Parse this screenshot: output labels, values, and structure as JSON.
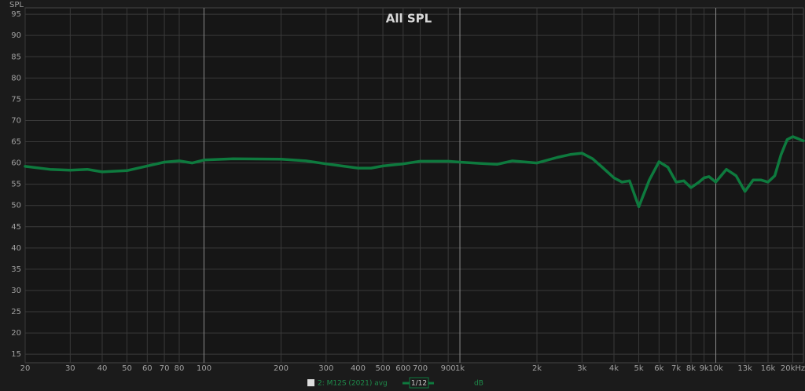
{
  "chart_data": {
    "type": "line",
    "title": "All SPL",
    "y_label": "SPL",
    "xscale": "log",
    "xlim": [
      20,
      22000
    ],
    "ylim": [
      13,
      96.5
    ],
    "grid": true,
    "xticks": [
      20,
      30,
      40,
      50,
      60,
      70,
      80,
      100,
      200,
      300,
      400,
      500,
      600,
      700,
      900,
      {
        "value": 1000,
        "label": "1k"
      },
      {
        "value": 2000,
        "label": "2k"
      },
      {
        "value": 3000,
        "label": "3k"
      },
      {
        "value": 4000,
        "label": "4k"
      },
      {
        "value": 5000,
        "label": "5k"
      },
      {
        "value": 6000,
        "label": "6k"
      },
      {
        "value": 7000,
        "label": "7k"
      },
      {
        "value": 8000,
        "label": "8k"
      },
      {
        "value": 9000,
        "label": "9k"
      },
      {
        "value": 10000,
        "label": "10k"
      },
      {
        "value": 13000,
        "label": "13k"
      },
      {
        "value": 16000,
        "label": "16k"
      },
      {
        "value": 20000,
        "label": "20kHz"
      }
    ],
    "yticks": [
      15,
      20,
      25,
      30,
      35,
      40,
      45,
      50,
      55,
      60,
      65,
      70,
      75,
      80,
      85,
      90,
      95
    ],
    "x": [
      20,
      25,
      30,
      35,
      40,
      50,
      60,
      70,
      80,
      90,
      100,
      130,
      200,
      250,
      300,
      400,
      450,
      500,
      600,
      700,
      900,
      1000,
      1200,
      1400,
      1600,
      2000,
      2400,
      2700,
      3000,
      3300,
      3600,
      4000,
      4300,
      4600,
      5000,
      5500,
      6000,
      6500,
      7000,
      7500,
      8000,
      8600,
      9000,
      9400,
      10000,
      11000,
      12000,
      13000,
      14000,
      15000,
      16000,
      17000,
      18000,
      19000,
      20000,
      22000
    ],
    "series": [
      {
        "name": "2: M12S (2021) avg",
        "color": "#0e7a3e",
        "values": [
          59.2,
          58.5,
          58.3,
          58.5,
          57.9,
          58.2,
          59.3,
          60.2,
          60.5,
          60.0,
          60.7,
          61.0,
          60.9,
          60.5,
          59.8,
          58.8,
          58.8,
          59.3,
          59.8,
          60.4,
          60.4,
          60.2,
          59.9,
          59.7,
          60.5,
          60.0,
          61.3,
          62.0,
          62.3,
          61.0,
          59.0,
          56.5,
          55.5,
          55.8,
          49.7,
          56.0,
          60.3,
          59.0,
          55.5,
          55.8,
          54.2,
          55.5,
          56.5,
          56.8,
          55.5,
          58.5,
          57.0,
          53.3,
          56.0,
          56.0,
          55.5,
          57.0,
          62.0,
          65.5,
          66.2,
          65.2
        ]
      }
    ],
    "smoothing": "1/12",
    "unit": "dB"
  }
}
